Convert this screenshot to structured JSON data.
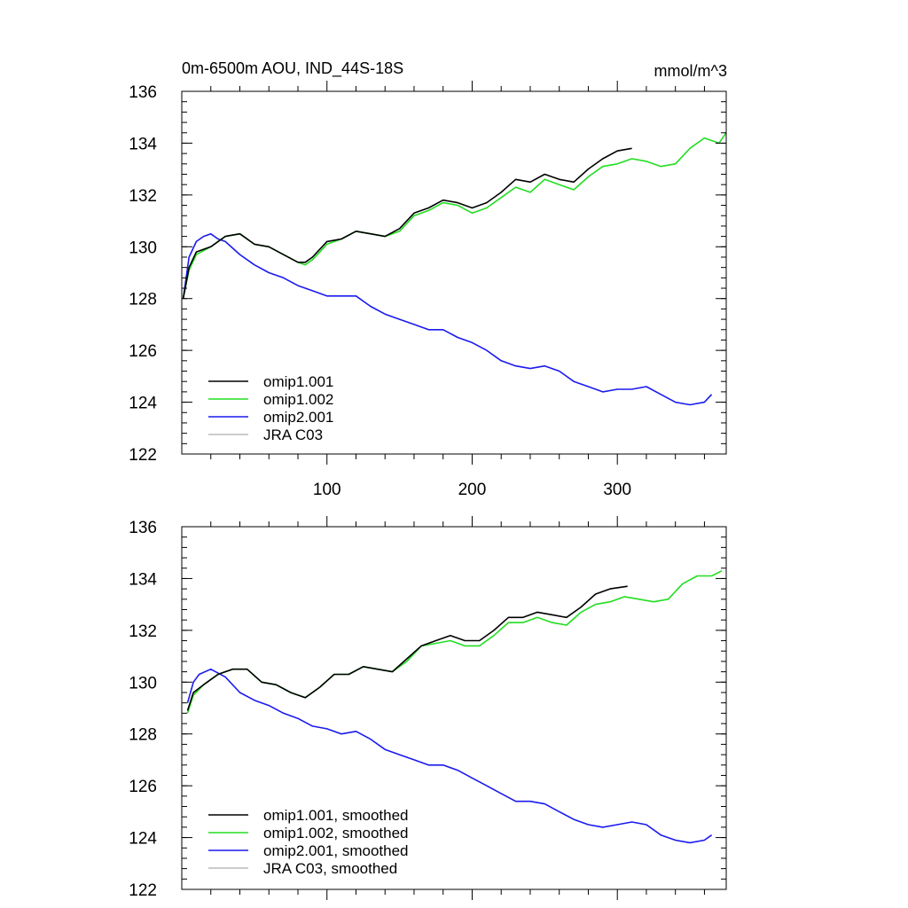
{
  "colors": {
    "omip1_001": "#000000",
    "omip1_002": "#22dd22",
    "omip2_001": "#1a1aee",
    "jra_c03": "#bbbbbb"
  },
  "chart_data": [
    {
      "type": "line",
      "title": "0m-6500m AOU, IND_44S-18S",
      "units": "mmol/m^3",
      "xlim": [
        0,
        375
      ],
      "ylim": [
        122,
        136
      ],
      "xticks": [
        100,
        200,
        300
      ],
      "xtick_labels": [
        "100",
        "200",
        "300"
      ],
      "yticks": [
        122,
        124,
        126,
        128,
        130,
        132,
        134,
        136
      ],
      "ytick_labels": [
        "122",
        "124",
        "126",
        "128",
        "130",
        "132",
        "134",
        "136"
      ],
      "legend_location": "bottom-left",
      "series": [
        {
          "name": "omip1.001",
          "color_key": "omip1_001",
          "x": [
            1,
            5,
            10,
            20,
            30,
            40,
            50,
            60,
            70,
            80,
            85,
            90,
            100,
            110,
            120,
            130,
            140,
            150,
            160,
            170,
            180,
            190,
            200,
            210,
            220,
            230,
            240,
            250,
            260,
            270,
            280,
            290,
            300,
            310
          ],
          "y": [
            128.0,
            129.2,
            129.8,
            130.0,
            130.4,
            130.5,
            130.1,
            130.0,
            129.7,
            129.4,
            129.4,
            129.6,
            130.2,
            130.3,
            130.6,
            130.5,
            130.4,
            130.7,
            131.3,
            131.5,
            131.8,
            131.7,
            131.5,
            131.7,
            132.1,
            132.6,
            132.5,
            132.8,
            132.6,
            132.5,
            133.0,
            133.4,
            133.7,
            133.8
          ]
        },
        {
          "name": "omip1.002",
          "color_key": "omip1_002",
          "x": [
            1,
            5,
            10,
            20,
            30,
            40,
            50,
            60,
            70,
            80,
            85,
            90,
            100,
            110,
            120,
            130,
            140,
            150,
            160,
            170,
            180,
            190,
            200,
            210,
            220,
            230,
            240,
            250,
            260,
            270,
            280,
            290,
            300,
            310,
            320,
            330,
            340,
            350,
            360,
            370,
            375
          ],
          "y": [
            128.0,
            129.1,
            129.7,
            130.0,
            130.4,
            130.5,
            130.1,
            130.0,
            129.7,
            129.4,
            129.3,
            129.5,
            130.1,
            130.3,
            130.6,
            130.5,
            130.4,
            130.6,
            131.2,
            131.4,
            131.7,
            131.6,
            131.3,
            131.5,
            131.9,
            132.3,
            132.1,
            132.6,
            132.4,
            132.2,
            132.7,
            133.1,
            133.2,
            133.4,
            133.3,
            133.1,
            133.2,
            133.8,
            134.2,
            134.0,
            134.4
          ]
        },
        {
          "name": "omip2.001",
          "color_key": "omip2_001",
          "x": [
            1,
            5,
            10,
            15,
            20,
            25,
            30,
            40,
            50,
            60,
            70,
            80,
            90,
            100,
            110,
            120,
            130,
            140,
            150,
            160,
            170,
            180,
            190,
            200,
            210,
            220,
            230,
            240,
            250,
            260,
            270,
            280,
            290,
            300,
            310,
            320,
            330,
            340,
            350,
            360,
            365
          ],
          "y": [
            128.0,
            129.6,
            130.2,
            130.4,
            130.5,
            130.3,
            130.2,
            129.7,
            129.3,
            129.0,
            128.8,
            128.5,
            128.3,
            128.1,
            128.1,
            128.1,
            127.7,
            127.4,
            127.2,
            127.0,
            126.8,
            126.8,
            126.5,
            126.3,
            126.0,
            125.6,
            125.4,
            125.3,
            125.4,
            125.2,
            124.8,
            124.6,
            124.4,
            124.5,
            124.5,
            124.6,
            124.3,
            124.0,
            123.9,
            124.0,
            124.3
          ]
        },
        {
          "name": "JRA C03",
          "color_key": "jra_c03",
          "x": [],
          "y": []
        }
      ]
    },
    {
      "type": "line",
      "xlim": [
        0,
        375
      ],
      "ylim": [
        122,
        136
      ],
      "xticks": [
        100,
        200,
        300
      ],
      "yticks": [
        122,
        124,
        126,
        128,
        130,
        132,
        134,
        136
      ],
      "ytick_labels": [
        "122",
        "124",
        "126",
        "128",
        "130",
        "132",
        "134",
        "136"
      ],
      "legend_location": "bottom-left",
      "series": [
        {
          "name": "omip1.001, smoothed",
          "color_key": "omip1_001",
          "x": [
            4,
            8,
            15,
            25,
            35,
            45,
            55,
            65,
            75,
            85,
            95,
            105,
            115,
            125,
            135,
            145,
            155,
            165,
            175,
            185,
            195,
            205,
            215,
            225,
            235,
            245,
            255,
            265,
            275,
            285,
            295,
            307
          ],
          "y": [
            128.9,
            129.6,
            129.9,
            130.3,
            130.5,
            130.5,
            130.0,
            129.9,
            129.6,
            129.4,
            129.8,
            130.3,
            130.3,
            130.6,
            130.5,
            130.4,
            130.9,
            131.4,
            131.6,
            131.8,
            131.6,
            131.6,
            132.0,
            132.5,
            132.5,
            132.7,
            132.6,
            132.5,
            132.9,
            133.4,
            133.6,
            133.7
          ]
        },
        {
          "name": "omip1.002, smoothed",
          "color_key": "omip1_002",
          "x": [
            4,
            8,
            15,
            25,
            35,
            45,
            55,
            65,
            75,
            85,
            95,
            105,
            115,
            125,
            135,
            145,
            155,
            165,
            175,
            185,
            195,
            205,
            215,
            225,
            235,
            245,
            255,
            265,
            275,
            285,
            295,
            305,
            315,
            325,
            335,
            345,
            355,
            365,
            372
          ],
          "y": [
            128.8,
            129.5,
            129.9,
            130.3,
            130.5,
            130.5,
            130.0,
            129.9,
            129.6,
            129.4,
            129.8,
            130.3,
            130.3,
            130.6,
            130.5,
            130.4,
            130.8,
            131.4,
            131.5,
            131.6,
            131.4,
            131.4,
            131.8,
            132.3,
            132.3,
            132.5,
            132.3,
            132.2,
            132.7,
            133.0,
            133.1,
            133.3,
            133.2,
            133.1,
            133.2,
            133.8,
            134.1,
            134.1,
            134.3
          ]
        },
        {
          "name": "omip2.001, smoothed",
          "color_key": "omip2_001",
          "x": [
            4,
            8,
            12,
            20,
            30,
            40,
            50,
            60,
            70,
            80,
            90,
            100,
            110,
            120,
            130,
            140,
            150,
            160,
            170,
            180,
            190,
            200,
            210,
            220,
            230,
            240,
            250,
            260,
            270,
            280,
            290,
            300,
            310,
            320,
            330,
            340,
            350,
            360,
            365
          ],
          "y": [
            129.2,
            130.0,
            130.3,
            130.5,
            130.2,
            129.6,
            129.3,
            129.1,
            128.8,
            128.6,
            128.3,
            128.2,
            128.0,
            128.1,
            127.8,
            127.4,
            127.2,
            127.0,
            126.8,
            126.8,
            126.6,
            126.3,
            126.0,
            125.7,
            125.4,
            125.4,
            125.3,
            125.0,
            124.7,
            124.5,
            124.4,
            124.5,
            124.6,
            124.5,
            124.1,
            123.9,
            123.8,
            123.9,
            124.1
          ]
        },
        {
          "name": "JRA C03, smoothed",
          "color_key": "jra_c03",
          "x": [],
          "y": []
        }
      ]
    }
  ]
}
